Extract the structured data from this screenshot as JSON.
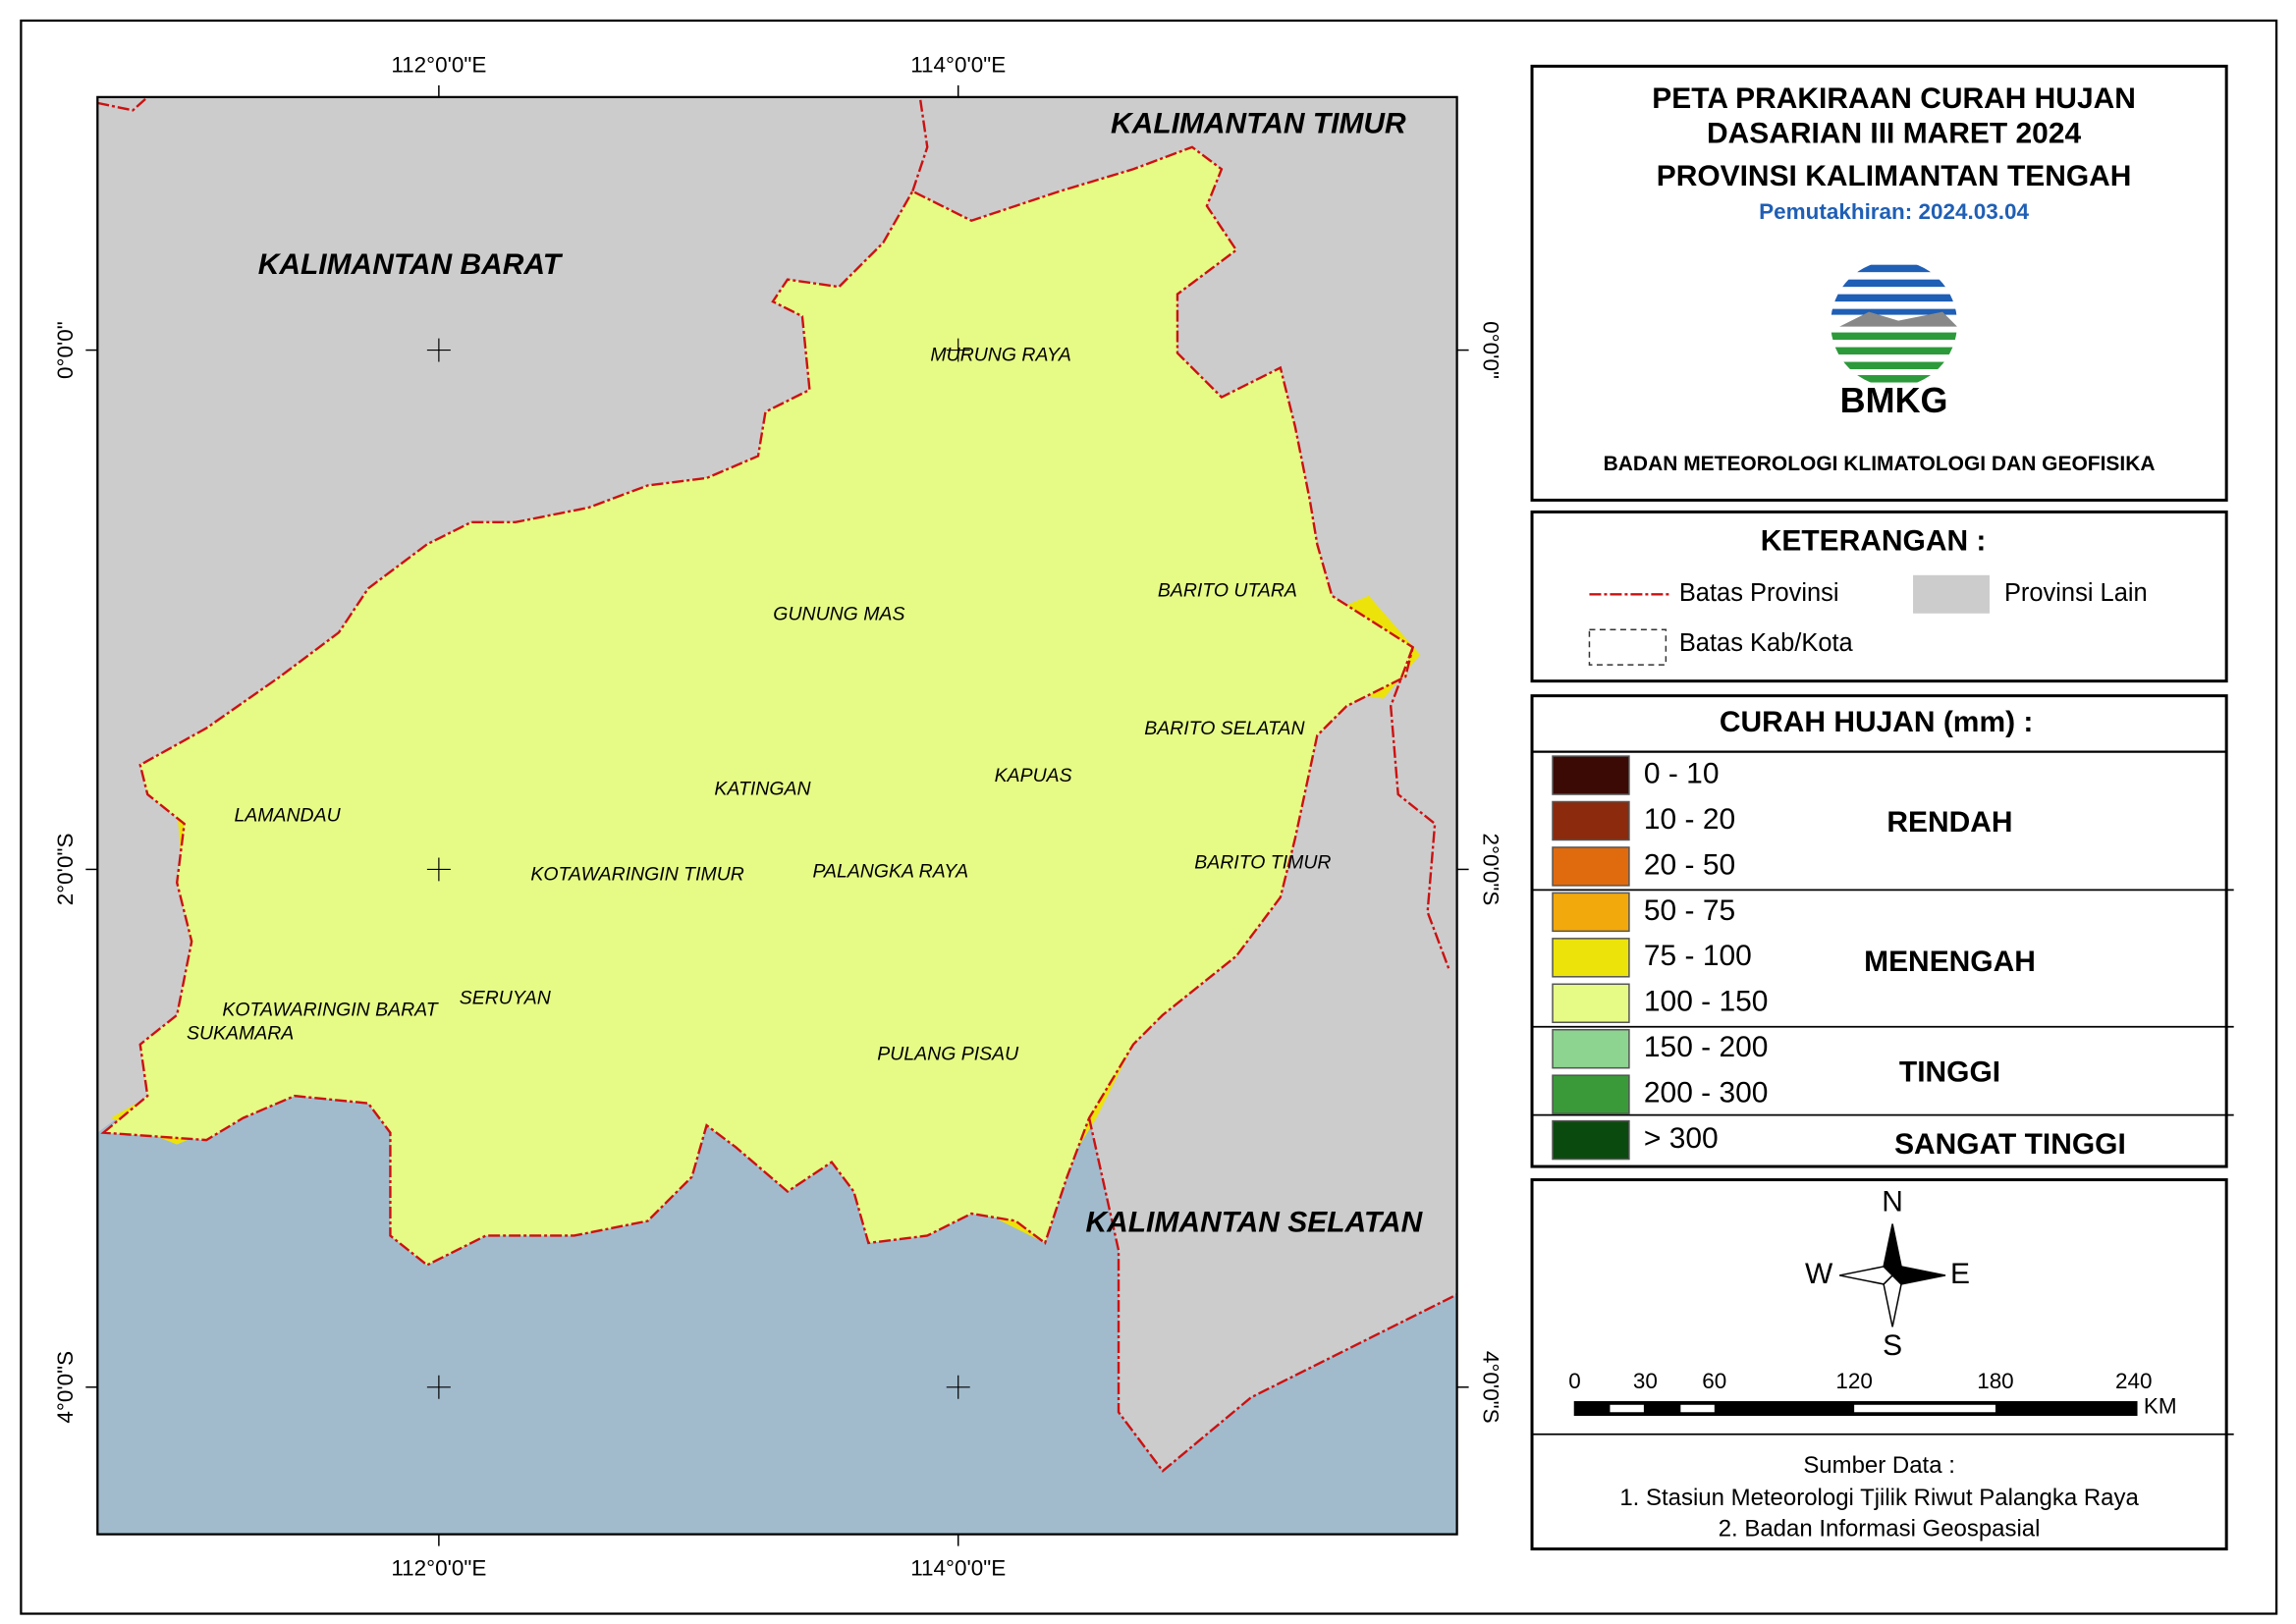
{
  "map": {
    "title": [
      "PETA PRAKIRAAN CURAH HUJAN",
      "DASARIAN III MARET 2024",
      "PROVINSI KALIMANTAN TENGAH"
    ],
    "updated": "Pemutakhiran: 2024.03.04",
    "logo_text": "BMKG",
    "agency": "BADAN METEOROLOGI KLIMATOLOGI DAN GEOFISIKA",
    "longitudes": [
      "112°0'0\"E",
      "114°0'0\"E"
    ],
    "latitudes": [
      "0°0'0\"",
      "2°0'0\"S",
      "4°0'0\"S"
    ],
    "provinces": [
      "KALIMANTAN TIMUR",
      "KALIMANTAN BARAT",
      "KALIMANTAN SELATAN"
    ],
    "regions": [
      "MURUNG RAYA",
      "GUNUNG MAS",
      "BARITO UTARA",
      "BARITO SELATAN",
      "KAPUAS",
      "KATINGAN",
      "LAMANDAU",
      "PALANGKA RAYA",
      "KOTAWARINGIN TIMUR",
      "BARITO TIMUR",
      "SERUYAN",
      "KOTAWARINGIN BARAT",
      "SUKAMARA",
      "PULANG PISAU"
    ]
  },
  "legend": {
    "title": "KETERANGAN :",
    "items": [
      "Batas Provinsi",
      "Provinsi Lain",
      "Batas Kab/Kota"
    ]
  },
  "rainfall": {
    "title": "CURAH HUJAN (mm) :",
    "classes": [
      {
        "range": "0 - 10",
        "color": "#3b0a05"
      },
      {
        "range": "10 - 20",
        "color": "#8b2a0c"
      },
      {
        "range": "20 - 50",
        "color": "#e06b0f"
      },
      {
        "range": "50 - 75",
        "color": "#f2a90c"
      },
      {
        "range": "75 - 100",
        "color": "#ece30b"
      },
      {
        "range": "100 - 150",
        "color": "#e6fa86"
      },
      {
        "range": "150 - 200",
        "color": "#8cd48f"
      },
      {
        "range": "200 - 300",
        "color": "#3a9a3a"
      },
      {
        "range": "> 300",
        "color": "#0a4a0f"
      }
    ],
    "categories": [
      "RENDAH",
      "MENENGAH",
      "TINGGI",
      "SANGAT TINGGI"
    ]
  },
  "compass": {
    "n": "N",
    "s": "S",
    "w": "W",
    "e": "E"
  },
  "scale": {
    "ticks": [
      "0",
      "30",
      "60",
      "120",
      "180",
      "240"
    ],
    "unit": "KM"
  },
  "sources": {
    "title": "Sumber Data :",
    "items": [
      "1. Stasiun Meteorologi Tjilik Riwut Palangka Raya",
      "2. Badan Informasi Geospasial"
    ]
  }
}
